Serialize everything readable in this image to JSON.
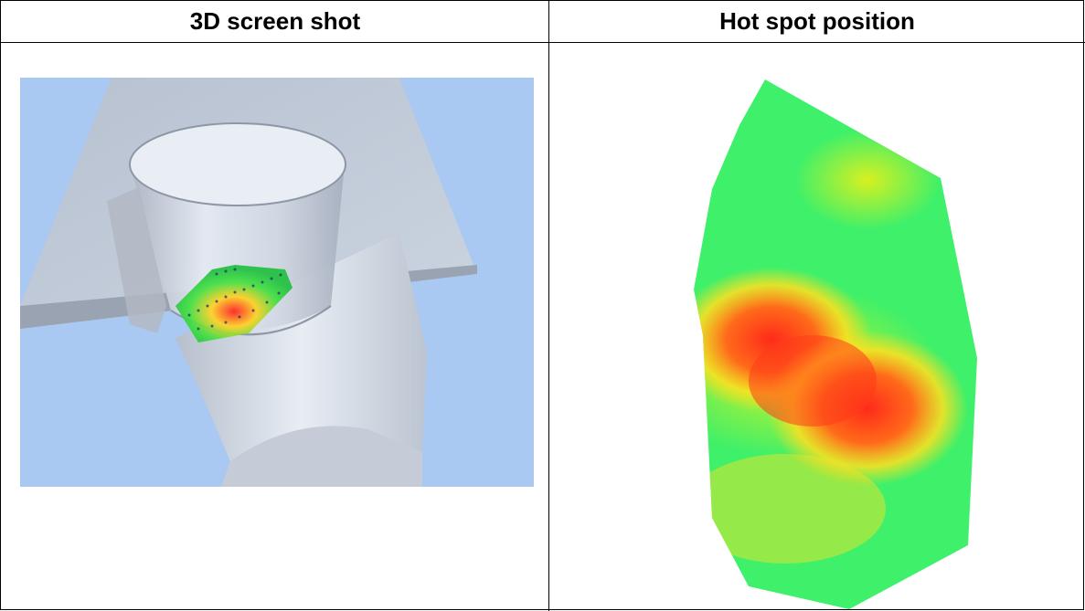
{
  "table": {
    "headers": [
      "3D screen shot",
      "Hot spot position"
    ]
  },
  "colors": {
    "background_3d": "#a9c8f2",
    "hot": "#ff2a1a",
    "warm": "#ffe020",
    "cool": "#3ef06a"
  },
  "images": {
    "left": "3d-model-render",
    "right": "hot-spot-heatmap"
  }
}
